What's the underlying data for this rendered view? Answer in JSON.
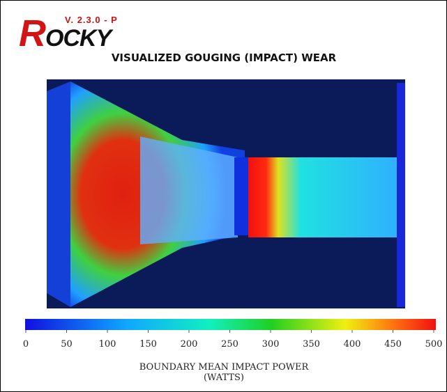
{
  "logo": {
    "version": "V. 2.3.0 - P",
    "brand": "ROCKY"
  },
  "title": "VISUALIZED GOUGING (IMPACT) WEAR",
  "colorbar": {
    "range": [
      0,
      500
    ],
    "ticks": [
      0,
      50,
      100,
      150,
      200,
      250,
      300,
      350,
      400,
      450,
      500
    ]
  },
  "label": [
    "BOUNDARY MEAN IMPACT POWER",
    "(WATTS)"
  ]
}
